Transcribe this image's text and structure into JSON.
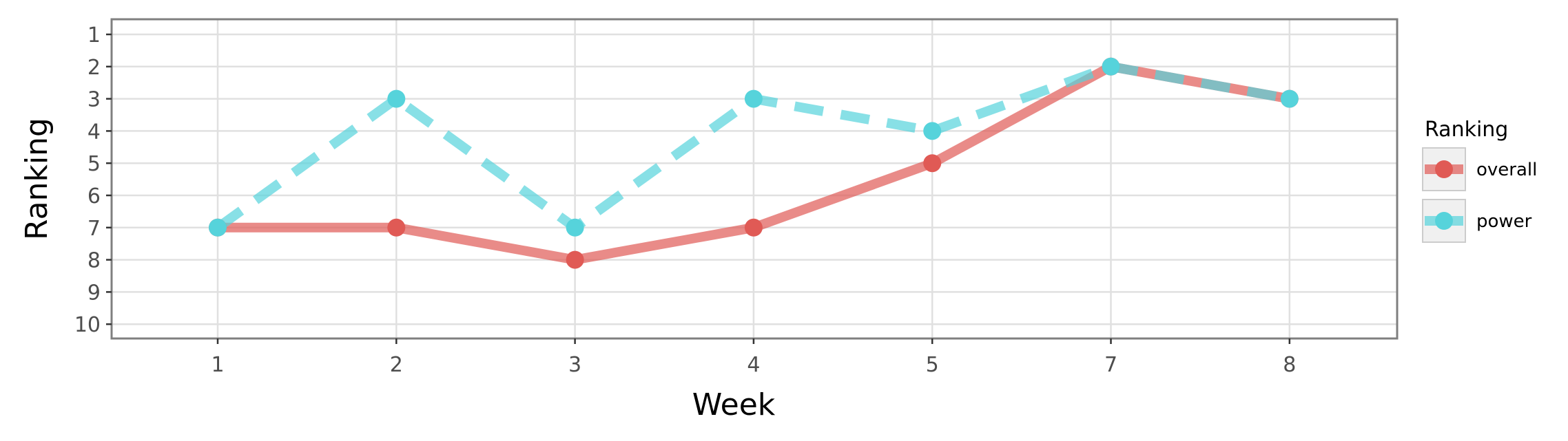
{
  "chart_data": {
    "type": "line",
    "xlabel": "Week",
    "ylabel": "Ranking",
    "categories": [
      "1",
      "2",
      "3",
      "4",
      "5",
      "7",
      "8"
    ],
    "y_ticks": [
      "1",
      "2",
      "3",
      "4",
      "5",
      "6",
      "7",
      "8",
      "9",
      "10"
    ],
    "ylim": [
      1,
      10
    ],
    "y_reversed": true,
    "grid": true,
    "legend": {
      "title": "Ranking",
      "position": "right",
      "entries": [
        "overall",
        "power"
      ]
    },
    "series": [
      {
        "name": "overall",
        "color": "#e05a55",
        "line_style": "solid",
        "values": [
          7,
          7,
          8,
          7,
          5,
          2,
          3
        ]
      },
      {
        "name": "power",
        "color": "#56d3db",
        "line_style": "dashed",
        "values": [
          7,
          3,
          7,
          3,
          4,
          2,
          3
        ]
      }
    ]
  }
}
